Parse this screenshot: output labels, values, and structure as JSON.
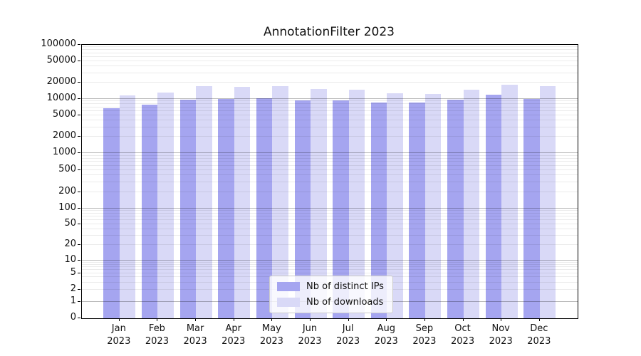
{
  "chart_data": {
    "type": "bar",
    "title": "AnnotationFilter 2023",
    "categories": [
      "Jan",
      "Feb",
      "Mar",
      "Apr",
      "May",
      "Jun",
      "Jul",
      "Aug",
      "Sep",
      "Oct",
      "Nov",
      "Dec"
    ],
    "year_label": "2023",
    "series": [
      {
        "name": "Nb of distinct IPs",
        "color": "#a5a5f0",
        "values": [
          6700,
          7800,
          9500,
          9800,
          10100,
          9400,
          9200,
          8600,
          8400,
          9600,
          11700,
          10000
        ]
      },
      {
        "name": "Nb of downloads",
        "color": "#d9d9f7",
        "values": [
          11500,
          13000,
          17200,
          16400,
          17300,
          15200,
          14500,
          12800,
          12100,
          14800,
          18100,
          17100
        ]
      }
    ],
    "yscale": "symlog",
    "ylim": [
      0,
      100000
    ],
    "y_ticks": [
      0,
      1,
      2,
      5,
      10,
      20,
      50,
      100,
      200,
      500,
      1000,
      2000,
      5000,
      10000,
      20000,
      50000,
      100000
    ],
    "grid": true,
    "legend": {
      "position": "lower center",
      "labels": [
        "Nb of distinct IPs",
        "Nb of downloads"
      ]
    }
  },
  "colors": {
    "series_1": "#a5a5f0",
    "series_2": "#d9d9f7",
    "major_grid": "rgba(0,0,0,0.27)",
    "minor_grid": "rgba(0,0,0,0.08)",
    "spine": "#000000",
    "text": "#111111"
  }
}
